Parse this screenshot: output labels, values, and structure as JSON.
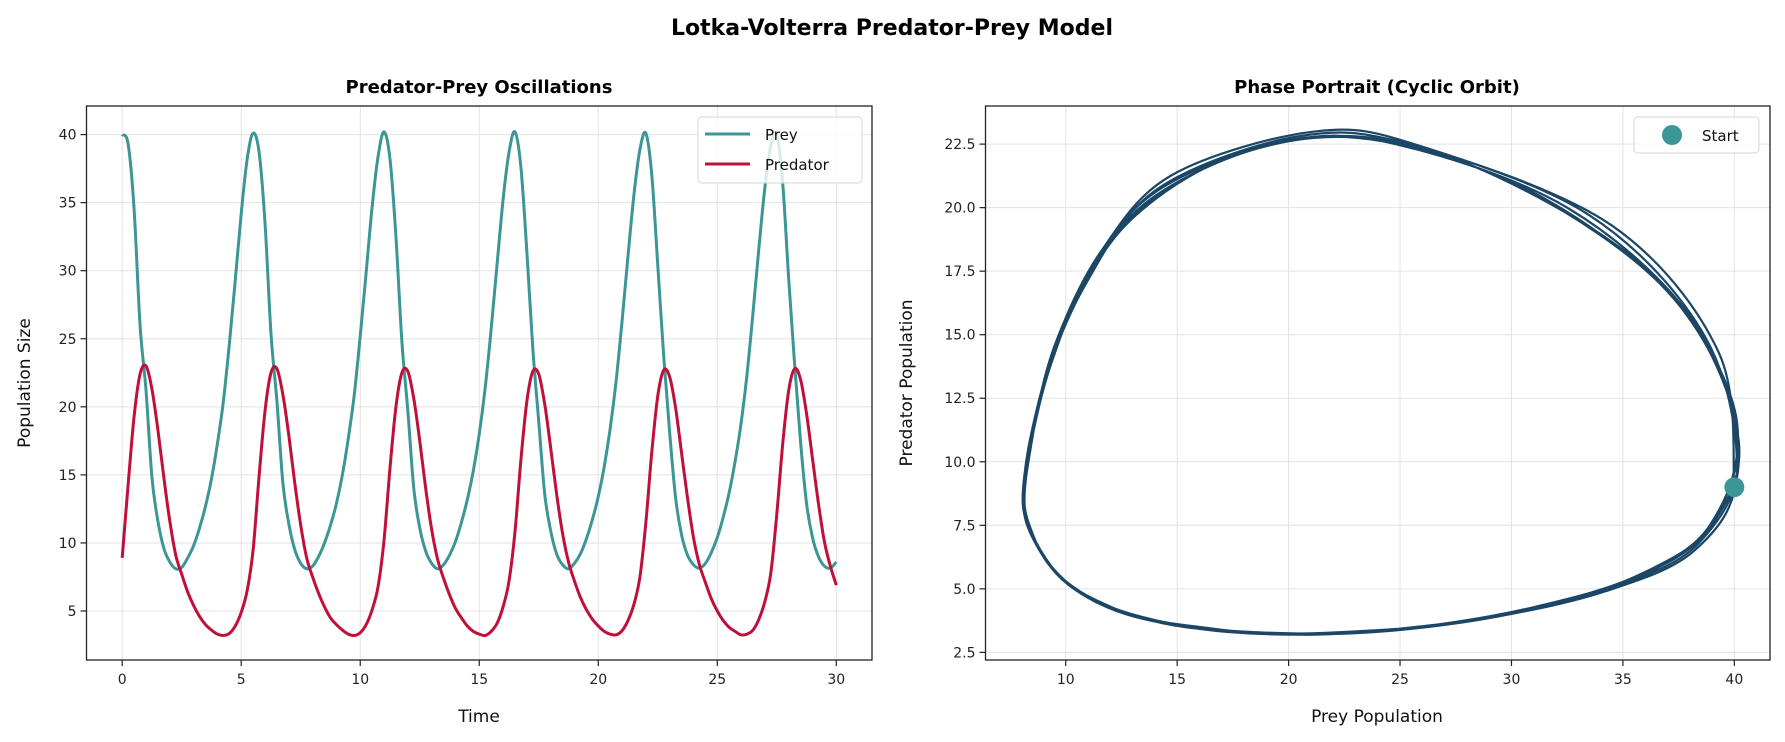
{
  "title": "Lotka-Volterra Predator-Prey Model",
  "colors": {
    "prey": "#3d9696",
    "predator": "#c0103a",
    "orbit": "#1b4665",
    "start": "#3d9696"
  },
  "chart_data": [
    {
      "type": "line",
      "title": "Predator-Prey Oscillations",
      "xlabel": "Time",
      "ylabel": "Population Size",
      "xlim": [
        -1.5,
        31.5
      ],
      "ylim": [
        1.4,
        42.1
      ],
      "xticks": [
        0,
        5,
        10,
        15,
        20,
        25,
        30
      ],
      "yticks": [
        5,
        10,
        15,
        20,
        25,
        30,
        35,
        40
      ],
      "grid": true,
      "legend_placement": "upper right",
      "x": [
        0,
        0.25,
        0.5,
        0.75,
        1,
        1.25,
        1.5,
        1.75,
        2,
        2.25,
        2.5,
        2.75,
        3,
        3.25,
        3.5,
        3.75,
        4,
        4.25,
        4.5,
        4.75,
        5,
        5.25,
        5.5,
        5.75,
        6,
        6.25,
        6.5,
        6.75,
        7,
        7.25,
        7.5,
        7.75,
        8,
        8.25,
        8.5,
        8.75,
        9,
        9.25,
        9.5,
        9.75,
        10,
        10.25,
        10.5,
        10.75,
        11,
        11.25,
        11.5,
        11.75,
        12,
        12.25,
        12.5,
        12.75,
        13,
        13.25,
        13.5,
        13.75,
        14,
        14.25,
        14.5,
        14.75,
        15,
        15.25,
        15.5,
        15.75,
        16,
        16.25,
        16.5,
        16.75,
        17,
        17.25,
        17.5,
        17.75,
        18,
        18.25,
        18.5,
        18.75,
        19,
        19.25,
        19.5,
        19.75,
        20,
        20.25,
        20.5,
        20.75,
        21,
        21.25,
        21.5,
        21.75,
        22,
        22.25,
        22.5,
        22.75,
        23,
        23.25,
        23.5,
        23.75,
        24,
        24.25,
        24.5,
        24.75,
        25,
        25.25,
        25.5,
        25.75,
        26,
        26.25,
        26.5,
        26.75,
        27,
        27.25,
        27.5,
        27.75,
        28,
        28.25,
        28.5,
        28.75,
        29,
        29.25,
        29.5,
        29.75,
        30
      ],
      "series": [
        {
          "name": "Prey",
          "values": [
            40.0,
            39.3,
            34.5,
            26.0,
            21.2,
            14.8,
            11.6,
            9.6,
            8.6,
            8.1,
            8.2,
            8.9,
            9.8,
            11.1,
            12.7,
            14.7,
            17.3,
            20.4,
            24.6,
            29.3,
            34.2,
            38.2,
            40.1,
            38.7,
            33.5,
            25.4,
            20.4,
            14.4,
            11.4,
            9.5,
            8.5,
            8.1,
            8.3,
            9.0,
            10.0,
            11.3,
            12.9,
            15.0,
            17.7,
            20.9,
            25.2,
            29.9,
            34.7,
            38.4,
            40.2,
            38.2,
            32.5,
            24.8,
            19.7,
            14.0,
            11.1,
            9.4,
            8.5,
            8.1,
            8.4,
            9.1,
            10.1,
            11.5,
            13.2,
            15.3,
            18.0,
            21.4,
            25.7,
            30.5,
            35.2,
            38.7,
            40.2,
            37.6,
            31.4,
            24.3,
            18.9,
            13.6,
            10.9,
            9.2,
            8.4,
            8.1,
            8.5,
            9.2,
            10.3,
            11.7,
            13.4,
            15.6,
            18.4,
            21.9,
            26.3,
            31.1,
            35.6,
            38.9,
            40.1,
            37.0,
            30.4,
            23.7,
            18.1,
            13.3,
            10.6,
            9.1,
            8.4,
            8.15,
            8.5,
            9.3,
            10.4,
            11.9,
            13.7,
            16.0,
            18.8,
            22.4,
            26.9,
            31.7,
            36.1,
            39.2,
            40.0,
            36.4,
            29.4,
            23.1,
            17.4,
            12.9,
            10.4,
            9.0,
            8.3,
            8.15,
            8.6
          ]
        },
        {
          "name": "Predator",
          "values": [
            8.9,
            14.3,
            19.3,
            22.4,
            23.0,
            21.3,
            18.3,
            14.8,
            11.6,
            9.1,
            7.7,
            6.4,
            5.4,
            4.6,
            4.0,
            3.6,
            3.3,
            3.2,
            3.35,
            3.9,
            4.9,
            6.5,
            9.5,
            14.9,
            19.7,
            22.5,
            22.8,
            20.9,
            17.9,
            14.4,
            11.3,
            8.9,
            7.5,
            6.3,
            5.3,
            4.5,
            4.0,
            3.6,
            3.3,
            3.2,
            3.4,
            4.0,
            5.1,
            6.8,
            10.2,
            15.5,
            20.0,
            22.5,
            22.6,
            20.6,
            17.5,
            14.0,
            11.0,
            8.8,
            7.4,
            6.2,
            5.2,
            4.5,
            3.9,
            3.5,
            3.3,
            3.2,
            3.5,
            4.1,
            5.3,
            7.2,
            10.8,
            16.1,
            20.4,
            22.6,
            22.4,
            20.2,
            17.0,
            13.6,
            10.7,
            8.6,
            7.2,
            6.0,
            5.1,
            4.4,
            3.9,
            3.5,
            3.3,
            3.25,
            3.55,
            4.3,
            5.5,
            7.5,
            11.5,
            16.7,
            20.8,
            22.7,
            22.2,
            19.9,
            16.6,
            13.3,
            10.4,
            8.4,
            7.1,
            5.9,
            5.0,
            4.3,
            3.8,
            3.5,
            3.25,
            3.3,
            3.6,
            4.4,
            5.7,
            7.8,
            12.1,
            17.3,
            21.2,
            22.8,
            22.0,
            19.5,
            16.2,
            12.9,
            10.1,
            8.3,
            6.9
          ]
        }
      ]
    },
    {
      "type": "line",
      "title": "Phase Portrait (Cyclic Orbit)",
      "xlabel": "Prey Population",
      "ylabel": "Predator Population",
      "xlim": [
        6.4,
        41.6
      ],
      "ylim": [
        2.2,
        24.0
      ],
      "xticks": [
        10,
        15,
        20,
        25,
        30,
        35,
        40
      ],
      "yticks": [
        "2.5",
        "5.0",
        "7.5",
        "10.0",
        "12.5",
        "15.0",
        "17.5",
        "20.0",
        "22.5"
      ],
      "grid": true,
      "legend_placement": "upper right",
      "orbit_source": "prey vs predator from the time series",
      "start_point": {
        "name": "Start",
        "x": 40,
        "y": 9
      }
    }
  ]
}
